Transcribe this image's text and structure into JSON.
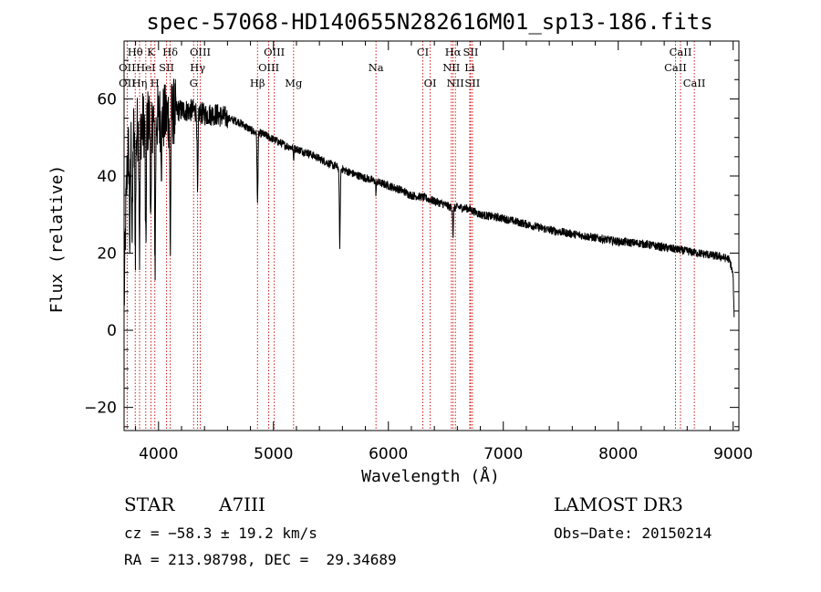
{
  "chart_data": {
    "type": "line",
    "title": "spec-57068-HD140655N282616M01_sp13-186.fits",
    "xlabel": "Wavelength (Å)",
    "ylabel": "Flux (relative)",
    "xlim": [
      3700,
      9050
    ],
    "ylim": [
      -26,
      75
    ],
    "xticks": [
      4000,
      5000,
      6000,
      7000,
      8000,
      9000
    ],
    "yticks": [
      -20,
      0,
      20,
      40,
      60
    ],
    "series": [
      {
        "name": "flux",
        "anchors_x": [
          3700,
          3715,
          3730,
          3760,
          3800,
          3850,
          3900,
          3950,
          4000,
          4050,
          4100,
          4150,
          4200,
          4300,
          4400,
          4500,
          4600,
          4700,
          4800,
          4860,
          4900,
          5000,
          5100,
          5200,
          5300,
          5400,
          5500,
          5580,
          5700,
          5800,
          5900,
          6000,
          6100,
          6200,
          6300,
          6400,
          6500,
          6563,
          6600,
          6700,
          6800,
          6900,
          7000,
          7200,
          7400,
          7600,
          7800,
          8000,
          8200,
          8400,
          8600,
          8800,
          8900,
          8960,
          8980,
          9000,
          9010
        ],
        "anchors_y": [
          5,
          30,
          45,
          50,
          52,
          53,
          54,
          55,
          55,
          55,
          56,
          57,
          57,
          57,
          56,
          56,
          55,
          54,
          52,
          51,
          51,
          49.5,
          48,
          47,
          46,
          44.5,
          43,
          42,
          40.5,
          39.5,
          38.5,
          37.5,
          36.5,
          35,
          34.5,
          33.5,
          32.5,
          31.5,
          32,
          31.5,
          30,
          29.5,
          29,
          27.5,
          26,
          25,
          24,
          23,
          22.5,
          21.5,
          20.5,
          19.5,
          19,
          18.5,
          17,
          14,
          1
        ],
        "absorption_lines": [
          {
            "x": 3750,
            "depth": 25
          },
          {
            "x": 3771,
            "depth": 28
          },
          {
            "x": 3798,
            "depth": 30
          },
          {
            "x": 3835,
            "depth": 32
          },
          {
            "x": 3889,
            "depth": 35
          },
          {
            "x": 3934,
            "depth": 28
          },
          {
            "x": 3970,
            "depth": 38
          },
          {
            "x": 4026,
            "depth": 10
          },
          {
            "x": 4102,
            "depth": 35
          },
          {
            "x": 4340,
            "depth": 22
          },
          {
            "x": 4861,
            "depth": 18
          },
          {
            "x": 5175,
            "depth": 3
          },
          {
            "x": 5577,
            "depth": 20
          },
          {
            "x": 5892,
            "depth": 3
          },
          {
            "x": 6563,
            "depth": 7
          }
        ]
      }
    ],
    "spectral_lines": [
      {
        "name": "Hθ",
        "x": 3797,
        "row": 1
      },
      {
        "name": "K",
        "x": 3934,
        "row": 1
      },
      {
        "name": "Hδ",
        "x": 4102,
        "row": 1
      },
      {
        "name": "OIII",
        "x": 4363,
        "row": 1
      },
      {
        "name": "OIII",
        "x": 5007,
        "row": 1
      },
      {
        "name": "CI",
        "x": 6300,
        "row": 1
      },
      {
        "name": "Hα",
        "x": 6563,
        "row": 1
      },
      {
        "name": "SII",
        "x": 6716,
        "row": 1
      },
      {
        "name": "CaII",
        "x": 8542,
        "row": 1
      },
      {
        "name": "OII",
        "x": 3727,
        "row": 2
      },
      {
        "name": "HeI",
        "x": 3889,
        "row": 2
      },
      {
        "name": "SII",
        "x": 4070,
        "row": 2
      },
      {
        "name": "Hγ",
        "x": 4340,
        "row": 2
      },
      {
        "name": "OIII",
        "x": 4959,
        "row": 2
      },
      {
        "name": "Na",
        "x": 5892,
        "row": 2
      },
      {
        "name": "NII",
        "x": 6548,
        "row": 2
      },
      {
        "name": "Li",
        "x": 6708,
        "row": 2
      },
      {
        "name": "CaII",
        "x": 8498,
        "row": 2
      },
      {
        "name": "OII",
        "x": 3727,
        "row": 3
      },
      {
        "name": "Hη",
        "x": 3835,
        "row": 3
      },
      {
        "name": "H",
        "x": 3968,
        "row": 3
      },
      {
        "name": "G",
        "x": 4305,
        "row": 3
      },
      {
        "name": "Hβ",
        "x": 4861,
        "row": 3
      },
      {
        "name": "Mg",
        "x": 5175,
        "row": 3
      },
      {
        "name": "OI",
        "x": 6364,
        "row": 3
      },
      {
        "name": "NII",
        "x": 6583,
        "row": 3
      },
      {
        "name": "SII",
        "x": 6731,
        "row": 3
      },
      {
        "name": "CaII",
        "x": 8662,
        "row": 3
      }
    ]
  },
  "info": {
    "object_type": "STAR",
    "subclass": "A7III",
    "survey": "LAMOST DR3",
    "cz": "cz = −58.3 ± 19.2 km/s",
    "obs_date": "Obs−Date: 20150214",
    "coords": "RA = 213.98798, DEC =  29.34689"
  },
  "colors": {
    "spectrum": "#000000",
    "marker_lines": "#cc0000",
    "background": "#ffffff"
  }
}
